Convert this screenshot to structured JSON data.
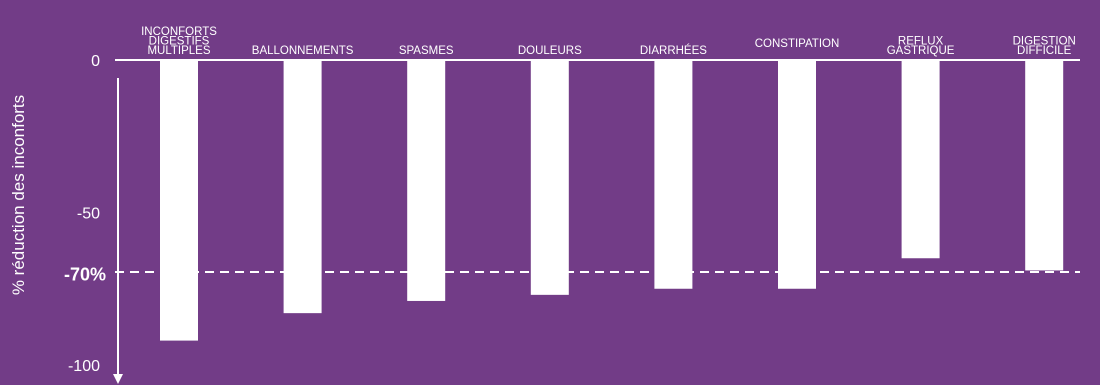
{
  "chart_data": {
    "type": "bar",
    "ylabel": "%  réduction des inconforts",
    "ylim": [
      -100,
      0
    ],
    "yticks": [
      {
        "value": 0,
        "label": "0"
      },
      {
        "value": -50,
        "label": "-50"
      },
      {
        "value": -100,
        "label": "-100"
      }
    ],
    "reference_line": {
      "value": -70,
      "label": "-70%",
      "style": "dashed"
    },
    "categories": [
      [
        "INCONFORTS",
        "DIGESTIFS",
        "MULTIPLES"
      ],
      [
        "BALLONNEMENTS"
      ],
      [
        "SPASMES"
      ],
      [
        "DOULEURS"
      ],
      [
        "DIARRHÉES"
      ],
      [
        "CONSTIPATION"
      ],
      [
        "REFLUX",
        "GASTRIQUE"
      ],
      [
        "DIGESTION",
        "DIFFICILE"
      ]
    ],
    "values": [
      -92,
      -83,
      -79,
      -77,
      -75,
      -75,
      -65,
      -69
    ],
    "colors": {
      "background": "#723C87",
      "bar": "#FFFFFF",
      "axis": "#FFFFFF"
    },
    "grid": false,
    "legend": "none"
  }
}
